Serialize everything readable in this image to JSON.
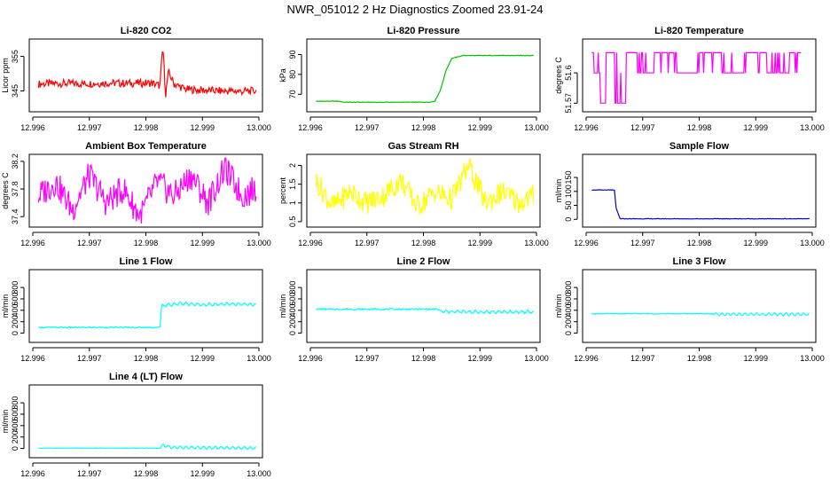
{
  "figure": {
    "title": "NWR_051012  2 Hz Diagnostics Zoomed 23.91-24"
  },
  "chart_data": [
    {
      "type": "line",
      "title": "Li-820 CO2",
      "ylabel": "Licor ppm",
      "color": "#ff0000",
      "xlim": [
        12.996,
        13.0
      ],
      "xticks": [
        "12.996",
        "12.997",
        "12.998",
        "12.999",
        "13.000"
      ],
      "ylim": [
        340,
        359
      ],
      "yticks": [
        345,
        355
      ],
      "series": [
        {
          "name": "CO2",
          "x": [
            12.9961,
            12.9965,
            12.9969,
            12.9973,
            12.9977,
            12.9981,
            12.99825,
            12.9983,
            12.99835,
            12.9984,
            12.9985,
            12.9987,
            12.9989,
            12.9993,
            12.9997,
            12.99995
          ],
          "values": [
            347.0,
            347.2,
            347.1,
            347.3,
            347.2,
            347.3,
            346.5,
            358.0,
            344.0,
            350.5,
            347.0,
            345.5,
            345.3,
            345.0,
            344.9,
            345.0
          ]
        }
      ]
    },
    {
      "type": "line",
      "title": "Li-820 Pressure",
      "ylabel": "kPa",
      "color": "#00c000",
      "xlim": [
        12.996,
        13.0
      ],
      "xticks": [
        "12.996",
        "12.997",
        "12.998",
        "12.999",
        "13.000"
      ],
      "ylim": [
        63,
        96
      ],
      "yticks": [
        70,
        80,
        90
      ],
      "series": [
        {
          "name": "Pressure",
          "x": [
            12.9961,
            12.9965,
            12.9966,
            12.9981,
            12.9982,
            12.9983,
            12.9984,
            12.9985,
            12.9987,
            12.999,
            12.99995
          ],
          "values": [
            66.5,
            66.5,
            66.0,
            66.0,
            66.5,
            72.0,
            82.0,
            88.0,
            89.5,
            89.5,
            89.5
          ]
        }
      ]
    },
    {
      "type": "line",
      "title": "Li-820 Temperature",
      "ylabel": "degrees C",
      "color": "#ff00ff",
      "xlim": [
        12.996,
        13.0
      ],
      "xticks": [
        "12.996",
        "12.997",
        "12.998",
        "12.999",
        "13.000"
      ],
      "ylim": [
        51.565,
        51.63
      ],
      "yticks": [
        51.57,
        51.6
      ],
      "series": [
        {
          "name": "Temperature",
          "x": [
            12.9961,
            12.9962,
            12.9963,
            12.9964,
            12.9966,
            12.9968,
            12.997,
            12.9974,
            12.9978,
            12.9982,
            12.9986,
            12.999,
            12.9994,
            12.9998
          ],
          "values": [
            51.62,
            51.6,
            51.57,
            51.62,
            51.57,
            51.62,
            51.6,
            51.62,
            51.6,
            51.62,
            51.6,
            51.62,
            51.6,
            51.62
          ]
        }
      ]
    },
    {
      "type": "line",
      "title": "Ambient Box Temperature",
      "ylabel": "degrees C",
      "color": "#ff00ff",
      "xlim": [
        12.996,
        13.0
      ],
      "xticks": [
        "12.996",
        "12.997",
        "12.998",
        "12.999",
        "13.000"
      ],
      "ylim": [
        37.3,
        38.25
      ],
      "yticks": [
        37.4,
        37.8,
        38.2
      ],
      "series": [
        {
          "name": "Box Temp",
          "x": [
            12.9961,
            12.9964,
            12.9967,
            12.997,
            12.9973,
            12.9976,
            12.9979,
            12.9982,
            12.9985,
            12.9988,
            12.9991,
            12.9994,
            12.9997,
            12.99995
          ],
          "values": [
            37.7,
            37.9,
            37.5,
            38.0,
            37.6,
            37.8,
            37.4,
            37.9,
            37.7,
            38.0,
            37.6,
            38.1,
            37.7,
            37.8
          ]
        }
      ]
    },
    {
      "type": "line",
      "title": "Gas Stream RH",
      "ylabel": "percent",
      "color": "#ffff00",
      "xlim": [
        12.996,
        13.0
      ],
      "xticks": [
        "12.996",
        "12.997",
        "12.998",
        "12.999",
        "13.000"
      ],
      "ylim": [
        0.45,
        2.2
      ],
      "yticks": [
        0.5,
        1.0,
        1.5,
        2.0
      ],
      "series": [
        {
          "name": "RH",
          "x": [
            12.9961,
            12.9964,
            12.9967,
            12.997,
            12.9973,
            12.9976,
            12.9979,
            12.9982,
            12.9985,
            12.9988,
            12.9991,
            12.9994,
            12.9997,
            12.99995
          ],
          "values": [
            1.6,
            0.9,
            1.3,
            1.0,
            1.2,
            1.6,
            0.9,
            1.3,
            1.1,
            2.0,
            1.0,
            1.3,
            1.0,
            1.2
          ]
        }
      ]
    },
    {
      "type": "line",
      "title": "Sample Flow",
      "ylabel": "ml/min",
      "color": "#0000cc",
      "xlim": [
        12.996,
        13.0
      ],
      "xticks": [
        "12.996",
        "12.997",
        "12.998",
        "12.999",
        "13.000"
      ],
      "ylim": [
        -15,
        220
      ],
      "yticks": [
        0,
        50,
        100,
        150
      ],
      "series": [
        {
          "name": "Sample Flow",
          "x": [
            12.9961,
            12.9965,
            12.99653,
            12.9966,
            12.99995
          ],
          "values": [
            105,
            105,
            40,
            2,
            2
          ]
        }
      ]
    },
    {
      "type": "line",
      "title": "Line 1 Flow",
      "ylabel": "ml/min",
      "color": "#00ffff",
      "xlim": [
        12.996,
        13.0
      ],
      "xticks": [
        "12.996",
        "12.997",
        "12.998",
        "12.999",
        "13.000"
      ],
      "ylim": [
        -100,
        1050
      ],
      "yticks": [
        0,
        200,
        400,
        600,
        800
      ],
      "series": [
        {
          "name": "Line 1",
          "x": [
            12.9961,
            12.99825,
            12.99828,
            12.9986,
            12.999,
            12.9994,
            12.99995
          ],
          "values": [
            100,
            100,
            480,
            520,
            500,
            510,
            500
          ]
        }
      ]
    },
    {
      "type": "line",
      "title": "Line 2 Flow",
      "ylabel": "ml/min",
      "color": "#00ffff",
      "xlim": [
        12.996,
        13.0
      ],
      "xticks": [
        "12.996",
        "12.997",
        "12.998",
        "12.999",
        "13.000"
      ],
      "ylim": [
        -100,
        1050
      ],
      "yticks": [
        0,
        200,
        400,
        600,
        800
      ],
      "series": [
        {
          "name": "Line 2",
          "x": [
            12.9961,
            12.99825,
            12.9983,
            12.999,
            12.99995
          ],
          "values": [
            420,
            420,
            380,
            370,
            370
          ]
        }
      ]
    },
    {
      "type": "line",
      "title": "Line 3 Flow",
      "ylabel": "ml/min",
      "color": "#00ffff",
      "xlim": [
        12.996,
        13.0
      ],
      "xticks": [
        "12.996",
        "12.997",
        "12.998",
        "12.999",
        "13.000"
      ],
      "ylim": [
        -100,
        1050
      ],
      "yticks": [
        0,
        200,
        400,
        600,
        800
      ],
      "series": [
        {
          "name": "Line 3",
          "x": [
            12.9961,
            12.99825,
            12.9983,
            12.99995
          ],
          "values": [
            340,
            340,
            330,
            330
          ]
        }
      ]
    },
    {
      "type": "line",
      "title": "Line 4 (LT) Flow",
      "ylabel": "ml/min",
      "color": "#00ffff",
      "xlim": [
        12.996,
        13.0
      ],
      "xticks": [
        "12.996",
        "12.997",
        "12.998",
        "12.999",
        "13.000"
      ],
      "ylim": [
        -100,
        1050
      ],
      "yticks": [
        0,
        200,
        400,
        600,
        800
      ],
      "series": [
        {
          "name": "Line 4",
          "x": [
            12.9961,
            12.99825,
            12.9983,
            12.99845,
            12.99995
          ],
          "values": [
            5,
            5,
            60,
            20,
            5
          ]
        }
      ]
    }
  ]
}
